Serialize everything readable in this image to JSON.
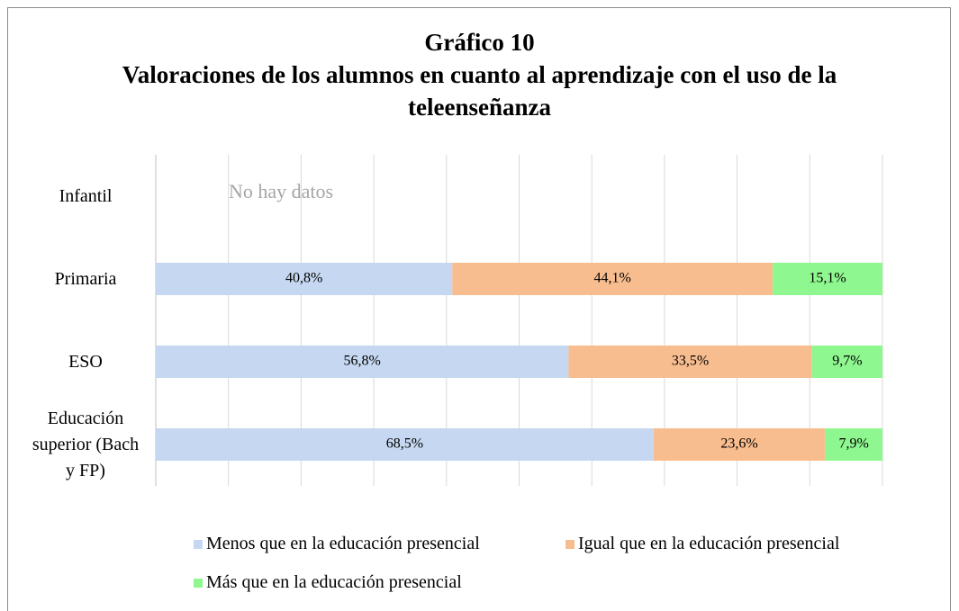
{
  "chart_data": {
    "type": "stacked_barh",
    "title": "Gráfico 10",
    "subtitle": "Valoraciones de los alumnos en cuanto al aprendizaje con el uso de la teleenseñanza",
    "annotation": "No hay datos",
    "categories": [
      "Infantil",
      "Primaria",
      "ESO",
      "Educación superior (Bach y FP)"
    ],
    "series": [
      {
        "name": "Menos que en la educación presencial",
        "color": "#c6d8f1",
        "values": [
          null,
          40.8,
          56.8,
          68.5
        ],
        "value_labels": [
          null,
          "40,8%",
          "56,8%",
          "68,5%"
        ]
      },
      {
        "name": "Igual que en la educación presencial",
        "color": "#f8bd8f",
        "values": [
          null,
          44.1,
          33.5,
          23.6
        ],
        "value_labels": [
          null,
          "44,1%",
          "33,5%",
          "23,6%"
        ]
      },
      {
        "name": "Más que en la educación presencial",
        "color": "#8ff78f",
        "values": [
          null,
          15.1,
          9.7,
          7.9
        ],
        "value_labels": [
          null,
          "15,1%",
          "9,7%",
          "7,9%"
        ]
      }
    ],
    "xlim": [
      0,
      100
    ],
    "xticks": [
      0,
      10,
      20,
      30,
      40,
      50,
      60,
      70,
      80,
      90,
      100
    ],
    "grid": true
  }
}
